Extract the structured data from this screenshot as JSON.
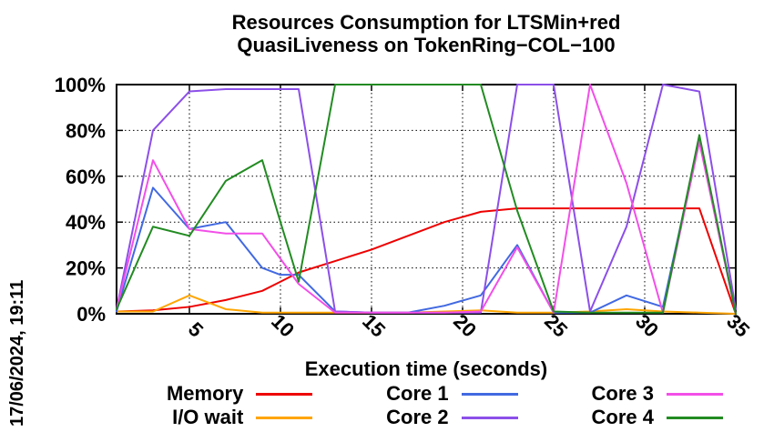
{
  "date_label": "17/06/2024, 19:11",
  "chart_data": {
    "type": "line",
    "title": "Resources Consumption for LTSMin+red",
    "subtitle": "QuasiLiveness on TokenRing−COL−100",
    "xlabel": "Execution time (seconds)",
    "ylabel": "",
    "xlim": [
      1,
      35
    ],
    "ylim": [
      0,
      100
    ],
    "x_ticks": [
      5,
      10,
      15,
      20,
      25,
      30,
      35
    ],
    "y_ticks": [
      0,
      20,
      40,
      60,
      80,
      100
    ],
    "y_tick_suffix": "%",
    "grid": true,
    "legend_position": "bottom",
    "x": [
      1,
      3,
      5,
      7,
      9,
      10,
      11,
      13,
      15,
      17,
      19,
      21,
      23,
      25,
      27,
      29,
      31,
      33,
      35
    ],
    "series": [
      {
        "name": "Memory",
        "color": "#ee0000",
        "values": [
          1,
          1.5,
          3,
          6,
          10,
          14,
          18,
          23,
          28,
          34,
          40,
          44.5,
          46,
          46,
          46,
          46,
          46,
          46,
          0
        ]
      },
      {
        "name": "I/O wait",
        "color": "#ffa500",
        "values": [
          1,
          1,
          8,
          2,
          0.5,
          0.5,
          0.5,
          0.5,
          0.5,
          0.5,
          1,
          1.5,
          0.5,
          0.5,
          1,
          2,
          1,
          0.5,
          0
        ]
      },
      {
        "name": "Core 1",
        "color": "#4169e1",
        "values": [
          1,
          55,
          37,
          40,
          20,
          17,
          17,
          1,
          0.5,
          0.5,
          3.5,
          8,
          30,
          0.5,
          0.5,
          8,
          3,
          76,
          0
        ]
      },
      {
        "name": "Core 2",
        "color": "#8c4fe8",
        "values": [
          2,
          80,
          97,
          98,
          98,
          98,
          98,
          1,
          0.5,
          0.5,
          0.5,
          0.5,
          100,
          100,
          1,
          38,
          100,
          97,
          2
        ]
      },
      {
        "name": "Core 3",
        "color": "#f24fe8",
        "values": [
          2,
          67,
          37,
          35,
          35,
          24,
          13,
          0.5,
          0.5,
          0.5,
          0.5,
          1,
          29,
          0.5,
          100,
          57,
          0.5,
          75,
          0
        ]
      },
      {
        "name": "Core 4",
        "color": "#228b22",
        "values": [
          2,
          38,
          34,
          58,
          67,
          40,
          14,
          100,
          100,
          100,
          100,
          100,
          45,
          1,
          0.5,
          0.5,
          0.5,
          78,
          0
        ]
      }
    ]
  }
}
